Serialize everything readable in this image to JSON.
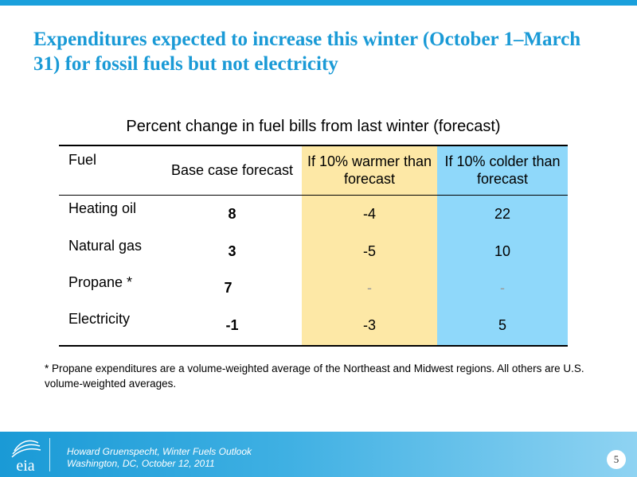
{
  "slide": {
    "title": "Expenditures expected to increase this winter (October 1–March 31) for fossil fuels but not electricity",
    "table_caption": "Percent change in fuel bills from last winter (forecast)",
    "page_number": "5"
  },
  "table": {
    "headers": {
      "fuel": "Fuel",
      "base": "Base case forecast",
      "warm": "If 10% warmer than forecast",
      "cold": "If 10% colder than forecast"
    },
    "rows": [
      {
        "fuel": "Heating oil",
        "base": "8",
        "warm": "-4",
        "cold": "22"
      },
      {
        "fuel": "Natural gas",
        "base": "3",
        "warm": "-5",
        "cold": "10"
      },
      {
        "fuel": "Propane *",
        "base": "7",
        "warm": "-",
        "cold": "-"
      },
      {
        "fuel": "Electricity",
        "base": "-1",
        "warm": "-3",
        "cold": "5"
      }
    ]
  },
  "footnote": "* Propane expenditures are a volume-weighted average of the Northeast and Midwest regions.  All others are U.S. volume-weighted averages.",
  "footer": {
    "logo_text": "eia",
    "line1": "Howard Gruenspecht, Winter Fuels Outlook",
    "line2": "Washington, DC, October 12, 2011"
  },
  "colors": {
    "accent_blue": "#1a9ad6",
    "warm_column": "#fde8a6",
    "cold_column": "#8fd8fa"
  },
  "icons": {
    "logo": "eia-logo-icon"
  }
}
